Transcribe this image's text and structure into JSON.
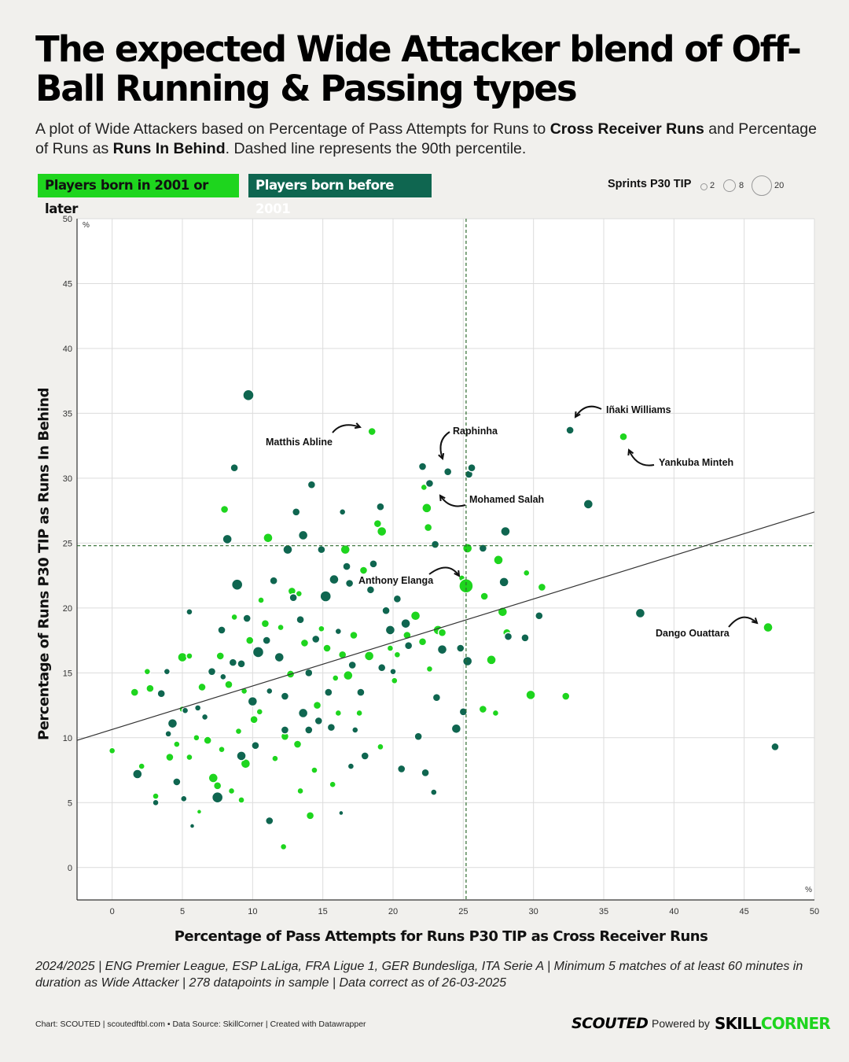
{
  "header": {
    "title": "The expected Wide Attacker blend of Off-Ball Running & Passing types",
    "subtitle_parts": [
      {
        "text": "A plot of Wide Attackers based on Percentage of Pass Attempts for Runs to ",
        "bold": false
      },
      {
        "text": "Cross Receiver Runs",
        "bold": true
      },
      {
        "text": " and Percentage of Runs as ",
        "bold": false
      },
      {
        "text": "Runs In Behind",
        "bold": true
      },
      {
        "text": ". Dashed line represents the 90th percentile.",
        "bold": false
      }
    ]
  },
  "legend": {
    "young": "Players born in 2001 or later",
    "old": "Players born before 2001",
    "size_title": "Sprints P30 TIP",
    "size_values": [
      "2",
      "8",
      "20"
    ]
  },
  "colors": {
    "young": "#1ed51e",
    "old": "#0f6650",
    "background": "#f1f0ed",
    "grid": "#dcdcdc",
    "percentile": "#2f6b2f"
  },
  "chart_data": {
    "type": "scatter",
    "xlabel": "Percentage of Pass Attempts for Runs P30 TIP as Cross Receiver Runs",
    "ylabel": "Percentage of Runs P30 TIP as Runs In Behind",
    "x_unit": "%",
    "y_unit": "%",
    "xlim": [
      -2.5,
      50
    ],
    "ylim": [
      -2.5,
      50
    ],
    "x_ticks": [
      0,
      5,
      10,
      15,
      20,
      25,
      30,
      35,
      40,
      45,
      50
    ],
    "y_ticks": [
      0,
      5,
      10,
      15,
      20,
      25,
      30,
      35,
      40,
      45,
      50
    ],
    "percentile_90": {
      "x": 25.2,
      "y": 24.8
    },
    "trendline": [
      [
        -2.5,
        9.8
      ],
      [
        50,
        27.4
      ]
    ],
    "grid": true,
    "series": [
      {
        "name": "Players born in 2001 or later",
        "group": "young",
        "points": [
          [
            0,
            9,
            4
          ],
          [
            1.6,
            13.5,
            5
          ],
          [
            2.5,
            15.1,
            4
          ],
          [
            2.1,
            7.8,
            4
          ],
          [
            2.7,
            13.8,
            5
          ],
          [
            3.1,
            5.5,
            4
          ],
          [
            4.1,
            8.5,
            5
          ],
          [
            4.6,
            9.5,
            4
          ],
          [
            5,
            12.2,
            4
          ],
          [
            5,
            16.2,
            6
          ],
          [
            5.5,
            8.5,
            4
          ],
          [
            6,
            10,
            4
          ],
          [
            6.4,
            13.9,
            5
          ],
          [
            6.2,
            4.3,
            3
          ],
          [
            6.8,
            9.8,
            5
          ],
          [
            7.2,
            6.9,
            6
          ],
          [
            7.5,
            6.3,
            5
          ],
          [
            7.8,
            9.1,
            4
          ],
          [
            8,
            27.6,
            5
          ],
          [
            7.7,
            16.3,
            5
          ],
          [
            8.7,
            19.3,
            4
          ],
          [
            8.3,
            14.1,
            5
          ],
          [
            8.5,
            5.9,
            4
          ],
          [
            9,
            10.5,
            4
          ],
          [
            9.2,
            5.2,
            4
          ],
          [
            9.4,
            13.6,
            4
          ],
          [
            9.5,
            8,
            6
          ],
          [
            9.8,
            17.5,
            5
          ],
          [
            10.1,
            11.4,
            5
          ],
          [
            10.6,
            20.6,
            4
          ],
          [
            10.5,
            12,
            4
          ],
          [
            10.9,
            18.8,
            5
          ],
          [
            11.1,
            25.4,
            6
          ],
          [
            11.6,
            8.4,
            4
          ],
          [
            12,
            18.5,
            4
          ],
          [
            12.3,
            10.1,
            5
          ],
          [
            12.2,
            1.6,
            4
          ],
          [
            12.7,
            14.9,
            5
          ],
          [
            12.8,
            21.3,
            5
          ],
          [
            13.2,
            9.5,
            5
          ],
          [
            13.4,
            5.9,
            4
          ],
          [
            13.7,
            17.3,
            5
          ],
          [
            14.1,
            4,
            5
          ],
          [
            14.4,
            7.5,
            4
          ],
          [
            14.6,
            12.5,
            5
          ],
          [
            14.9,
            18.4,
            4
          ],
          [
            15.3,
            16.9,
            5
          ],
          [
            15.7,
            6.4,
            4
          ],
          [
            15.9,
            14.6,
            4
          ],
          [
            16.4,
            16.4,
            5
          ],
          [
            16.6,
            24.5,
            6
          ],
          [
            16.8,
            14.8,
            6
          ],
          [
            17.2,
            17.9,
            5
          ],
          [
            17.6,
            11.9,
            4
          ],
          [
            17.9,
            22.9,
            5
          ],
          [
            18.3,
            16.3,
            6
          ],
          [
            18.5,
            33.6,
            5
          ],
          [
            18.9,
            26.5,
            5
          ],
          [
            19.2,
            25.9,
            6
          ],
          [
            19.1,
            9.3,
            4
          ],
          [
            19.8,
            16.9,
            4
          ],
          [
            20.1,
            14.4,
            4
          ],
          [
            20.3,
            16.4,
            4
          ],
          [
            21,
            17.9,
            5
          ],
          [
            21.6,
            19.4,
            6
          ],
          [
            22.1,
            17.4,
            5
          ],
          [
            22.2,
            29.3,
            4
          ],
          [
            22.4,
            27.7,
            6
          ],
          [
            22.5,
            26.2,
            5
          ],
          [
            22.6,
            15.3,
            4
          ],
          [
            23.2,
            18.3,
            6
          ],
          [
            23.5,
            18.1,
            5
          ],
          [
            24.9,
            22.3,
            4
          ],
          [
            25.2,
            21.7,
            9
          ],
          [
            25.3,
            24.6,
            6
          ],
          [
            26.4,
            12.2,
            5
          ],
          [
            26.5,
            20.9,
            5
          ],
          [
            27,
            16,
            6
          ],
          [
            27.3,
            11.9,
            4
          ],
          [
            27.5,
            23.7,
            6
          ],
          [
            27.8,
            19.7,
            6
          ],
          [
            28.1,
            18.1,
            5
          ],
          [
            29.5,
            22.7,
            4
          ],
          [
            29.8,
            13.3,
            6
          ],
          [
            30.6,
            21.6,
            5
          ],
          [
            32.3,
            13.2,
            5
          ],
          [
            36.4,
            33.2,
            5
          ],
          [
            46.7,
            18.5,
            6
          ],
          [
            5.5,
            16.3,
            4
          ],
          [
            16.1,
            11.9,
            4
          ],
          [
            13.3,
            21.1,
            4
          ]
        ]
      },
      {
        "name": "Players born before 2001",
        "group": "old",
        "points": [
          [
            1.8,
            7.2,
            6
          ],
          [
            3.1,
            5,
            4
          ],
          [
            3.5,
            13.4,
            5
          ],
          [
            3.9,
            15.1,
            4
          ],
          [
            4,
            10.3,
            4
          ],
          [
            4.3,
            11.1,
            6
          ],
          [
            4.6,
            6.6,
            5
          ],
          [
            5.1,
            5.3,
            4
          ],
          [
            5.2,
            12.1,
            4
          ],
          [
            5.5,
            19.7,
            4
          ],
          [
            5.7,
            3.2,
            3
          ],
          [
            6.6,
            11.6,
            4
          ],
          [
            7.1,
            15.1,
            5
          ],
          [
            7.5,
            5.4,
            7
          ],
          [
            7.8,
            18.3,
            5
          ],
          [
            7.9,
            14.7,
            4
          ],
          [
            8.2,
            25.3,
            6
          ],
          [
            8.6,
            15.8,
            5
          ],
          [
            8.7,
            30.8,
            5
          ],
          [
            8.9,
            21.8,
            7
          ],
          [
            9.2,
            15.7,
            5
          ],
          [
            9.7,
            36.4,
            7
          ],
          [
            9.6,
            19.2,
            5
          ],
          [
            10,
            12.8,
            6
          ],
          [
            10.4,
            16.6,
            7
          ],
          [
            11,
            17.5,
            5
          ],
          [
            11.2,
            3.6,
            5
          ],
          [
            11.5,
            22.1,
            5
          ],
          [
            11.9,
            16.2,
            6
          ],
          [
            12.3,
            13.2,
            5
          ],
          [
            12.5,
            24.5,
            6
          ],
          [
            12.9,
            20.8,
            5
          ],
          [
            13.1,
            27.4,
            5
          ],
          [
            13.4,
            19.1,
            5
          ],
          [
            13.6,
            25.6,
            6
          ],
          [
            14,
            15,
            5
          ],
          [
            14.2,
            29.5,
            5
          ],
          [
            14.5,
            17.6,
            5
          ],
          [
            14.7,
            11.3,
            5
          ],
          [
            14.9,
            24.5,
            5
          ],
          [
            15.2,
            20.9,
            7
          ],
          [
            15.4,
            13.5,
            5
          ],
          [
            15.6,
            10.8,
            5
          ],
          [
            15.8,
            22.2,
            6
          ],
          [
            16.1,
            18.2,
            4
          ],
          [
            16.4,
            27.4,
            4
          ],
          [
            16.7,
            23.2,
            5
          ],
          [
            16.9,
            21.9,
            5
          ],
          [
            17.1,
            15.6,
            5
          ],
          [
            17.3,
            10.6,
            4
          ],
          [
            17.7,
            13.5,
            5
          ],
          [
            18,
            8.6,
            5
          ],
          [
            18.4,
            21.4,
            5
          ],
          [
            18.6,
            23.4,
            5
          ],
          [
            19.1,
            27.8,
            5
          ],
          [
            19.2,
            15.4,
            5
          ],
          [
            19.5,
            19.8,
            5
          ],
          [
            19.8,
            18.3,
            6
          ],
          [
            20,
            15.1,
            4
          ],
          [
            20.3,
            20.7,
            5
          ],
          [
            20.6,
            7.6,
            5
          ],
          [
            20.9,
            18.8,
            6
          ],
          [
            21.1,
            17.1,
            5
          ],
          [
            21.8,
            10.1,
            5
          ],
          [
            22.1,
            30.9,
            5
          ],
          [
            22.3,
            7.3,
            5
          ],
          [
            22.6,
            29.6,
            5
          ],
          [
            22.9,
            5.8,
            4
          ],
          [
            23,
            24.9,
            5
          ],
          [
            23.1,
            13.1,
            5
          ],
          [
            23.5,
            16.8,
            6
          ],
          [
            23.9,
            30.5,
            5
          ],
          [
            24.5,
            10.7,
            6
          ],
          [
            24.8,
            16.9,
            5
          ],
          [
            25,
            12,
            5
          ],
          [
            25.3,
            15.9,
            6
          ],
          [
            25.4,
            30.3,
            5
          ],
          [
            25.6,
            30.8,
            5
          ],
          [
            26.4,
            24.6,
            5
          ],
          [
            27.9,
            22,
            6
          ],
          [
            28,
            25.9,
            6
          ],
          [
            28.2,
            17.8,
            5
          ],
          [
            29.4,
            17.7,
            5
          ],
          [
            30.4,
            19.4,
            5
          ],
          [
            32.6,
            33.7,
            5
          ],
          [
            33.9,
            28,
            6
          ],
          [
            37.6,
            19.6,
            6
          ],
          [
            47.2,
            9.3,
            5
          ],
          [
            14,
            10.6,
            5
          ],
          [
            17,
            7.8,
            4
          ],
          [
            9.2,
            8.6,
            6
          ],
          [
            10.2,
            9.4,
            5
          ],
          [
            6.1,
            12.3,
            4
          ],
          [
            16.3,
            4.2,
            3
          ],
          [
            12.3,
            10.6,
            5
          ],
          [
            11.2,
            13.6,
            4
          ],
          [
            13.6,
            11.9,
            6
          ]
        ]
      }
    ]
  },
  "annotations": [
    {
      "label": "Matthis Abline",
      "x": 18.5,
      "y": 33.6
    },
    {
      "label": "Raphinha",
      "x": 23.3,
      "y": 31.3
    },
    {
      "label": "Iñaki Williams",
      "x": 32.6,
      "y": 33.7
    },
    {
      "label": "Yankuba Minteh",
      "x": 36.4,
      "y": 33.2
    },
    {
      "label": "Mohamed Salah",
      "x": 23.9,
      "y": 28.8
    },
    {
      "label": "Anthony Elanga",
      "x": 25.2,
      "y": 22.2
    },
    {
      "label": "Dango Ouattara",
      "x": 46.7,
      "y": 18.5
    }
  ],
  "footer": {
    "note": "2024/2025 | ENG Premier League, ESP LaLiga, FRA Ligue 1, GER Bundesliga, ITA Serie A | Minimum 5 matches of at least 60 minutes in duration as Wide Attacker | 278 datapoints in sample | Data correct as of 26-03-2025",
    "credit": "Chart: SCOUTED | scoutedftbl.com • Data Source: SkillCorner | Created with Datawrapper",
    "brand_scouted": "SCOUTED",
    "brand_powered": "Powered by",
    "brand_skill": "SKILL",
    "brand_corner": "CORNER"
  }
}
